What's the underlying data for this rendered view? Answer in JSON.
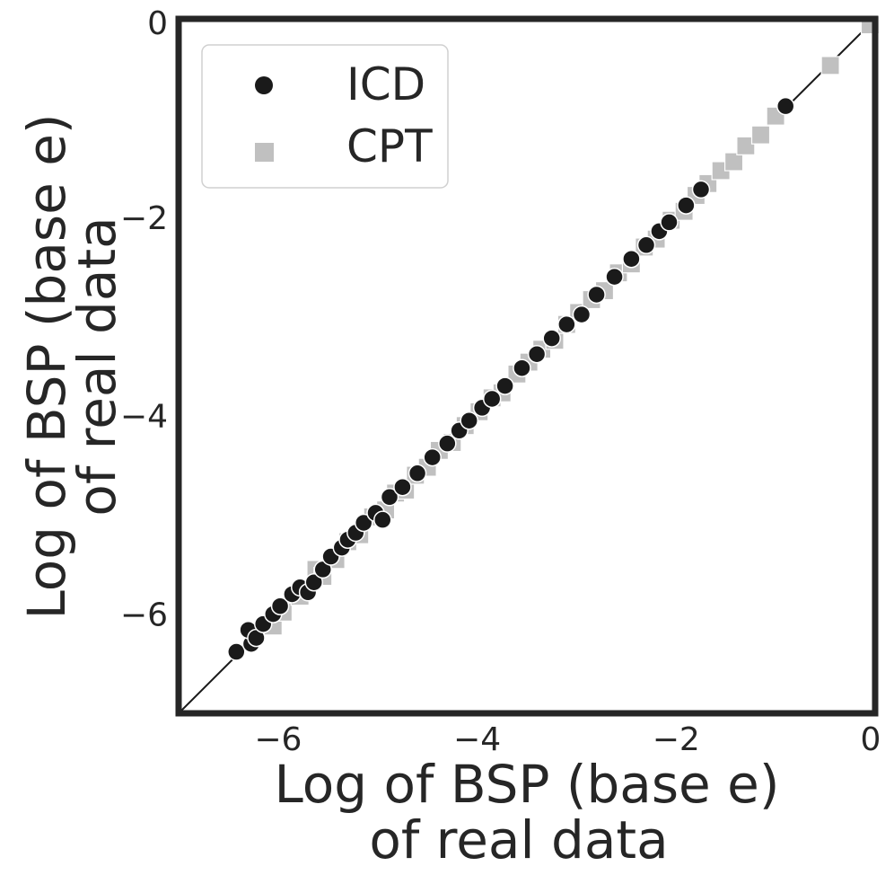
{
  "chart_data": {
    "type": "scatter",
    "xlabel": [
      "Log of BSP (base e)",
      "of real data"
    ],
    "ylabel": [
      "Log of BSP (base e)",
      "of real data"
    ],
    "xlim": [
      -7,
      0
    ],
    "ylim": [
      -7,
      0
    ],
    "xticks": [
      {
        "value": -6,
        "label": "−6"
      },
      {
        "value": -4,
        "label": "−4"
      },
      {
        "value": -2,
        "label": "−2"
      },
      {
        "value": 0,
        "label": "0"
      }
    ],
    "yticks": [
      {
        "value": -6,
        "label": "−6"
      },
      {
        "value": -4,
        "label": "−4"
      },
      {
        "value": -2,
        "label": "−2"
      },
      {
        "value": 0,
        "label": "0"
      }
    ],
    "grid": false,
    "legend_position": "top-left",
    "reference_line": "y = x",
    "colors": {
      "ICD": "#1a1a1a",
      "CPT": "#c0c0c0",
      "frame": "#262626",
      "line": "#1a1a1a"
    },
    "series": [
      {
        "name": "ICD",
        "marker": "circle",
        "x": [
          -6.42,
          -6.27,
          -6.3,
          -6.22,
          -6.15,
          -6.05,
          -5.98,
          -5.86,
          -5.78,
          -5.7,
          -5.64,
          -5.55,
          -5.47,
          -5.36,
          -5.3,
          -5.22,
          -5.14,
          -5.02,
          -4.95,
          -4.88,
          -4.75,
          -4.6,
          -4.45,
          -4.3,
          -4.18,
          -4.08,
          -3.95,
          -3.85,
          -3.72,
          -3.55,
          -3.4,
          -3.25,
          -3.1,
          -2.95,
          -2.8,
          -2.62,
          -2.45,
          -2.3,
          -2.17,
          -2.07,
          -1.9,
          -1.75,
          -0.9
        ],
        "y": [
          -6.38,
          -6.3,
          -6.16,
          -6.24,
          -6.1,
          -6.0,
          -5.92,
          -5.8,
          -5.73,
          -5.78,
          -5.68,
          -5.55,
          -5.42,
          -5.33,
          -5.25,
          -5.18,
          -5.08,
          -4.98,
          -5.05,
          -4.82,
          -4.72,
          -4.58,
          -4.42,
          -4.28,
          -4.15,
          -4.05,
          -3.92,
          -3.83,
          -3.7,
          -3.52,
          -3.38,
          -3.22,
          -3.08,
          -2.98,
          -2.78,
          -2.6,
          -2.42,
          -2.28,
          -2.14,
          -2.05,
          -1.88,
          -1.72,
          -0.88
        ]
      },
      {
        "name": "CPT",
        "marker": "square",
        "x": [
          -6.05,
          -5.95,
          -5.78,
          -5.62,
          -5.55,
          -5.42,
          -5.3,
          -5.18,
          -5.05,
          -4.92,
          -4.82,
          -4.72,
          -4.62,
          -4.5,
          -4.38,
          -4.25,
          -4.12,
          -3.98,
          -3.85,
          -3.75,
          -3.6,
          -3.48,
          -3.35,
          -3.22,
          -3.1,
          -2.98,
          -2.85,
          -2.72,
          -2.58,
          -2.45,
          -2.32,
          -2.2,
          -2.05,
          -1.92,
          -1.8,
          -1.68,
          -1.55,
          -1.42,
          -1.3,
          -1.15,
          -1.0,
          -0.45,
          -0.05
        ],
        "y": [
          -6.12,
          -5.98,
          -5.82,
          -5.55,
          -5.62,
          -5.45,
          -5.27,
          -5.2,
          -5.02,
          -4.95,
          -4.78,
          -4.75,
          -4.6,
          -4.52,
          -4.35,
          -4.27,
          -4.1,
          -3.96,
          -3.82,
          -3.77,
          -3.58,
          -3.46,
          -3.33,
          -3.24,
          -3.08,
          -2.96,
          -2.83,
          -2.74,
          -2.56,
          -2.47,
          -2.3,
          -2.22,
          -2.03,
          -1.94,
          -1.78,
          -1.66,
          -1.53,
          -1.44,
          -1.28,
          -1.17,
          -0.98,
          -0.47,
          -0.06
        ]
      }
    ]
  }
}
